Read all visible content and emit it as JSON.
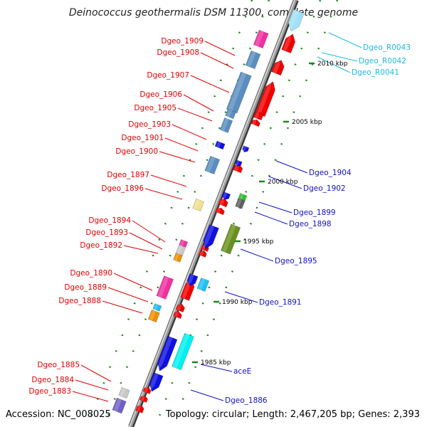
{
  "title": "Deinococcus geothermalis DSM 11300, complete genome",
  "footer": {
    "accession": "Accession: NC_008025",
    "topology": "Topology: circular; Length: 2,467,205 bp; Genes: 2,393"
  },
  "colors": {
    "forward_label": "#e00000",
    "reverse_label": "#1010c8",
    "rna_label": "#20b8e0",
    "green_tick": "#1a8a1a",
    "backbone": "#8c8c8c",
    "backbone_shadow": "#3a3a3a"
  },
  "scale_labels": [
    {
      "text": "2010 kbp"
    },
    {
      "text": "2005 kbp"
    },
    {
      "text": "2000 kbp"
    },
    {
      "text": "1995 kbp"
    },
    {
      "text": "1990 kbp"
    },
    {
      "text": "1985 kbp"
    }
  ],
  "forward_genes": [
    {
      "label": "Dgeo_1909"
    },
    {
      "label": "Dgeo_1908"
    },
    {
      "label": "Dgeo_1907"
    },
    {
      "label": "Dgeo_1906"
    },
    {
      "label": "Dgeo_1905"
    },
    {
      "label": "Dgeo_1903"
    },
    {
      "label": "Dgeo_1901"
    },
    {
      "label": "Dgeo_1900"
    },
    {
      "label": "Dgeo_1897"
    },
    {
      "label": "Dgeo_1896"
    },
    {
      "label": "Dgeo_1894"
    },
    {
      "label": "Dgeo_1893"
    },
    {
      "label": "Dgeo_1892"
    },
    {
      "label": "Dgeo_1890"
    },
    {
      "label": "Dgeo_1889"
    },
    {
      "label": "Dgeo_1888"
    },
    {
      "label": "Dgeo_1885"
    },
    {
      "label": "Dgeo_1884"
    },
    {
      "label": "Dgeo_1883"
    }
  ],
  "reverse_genes": [
    {
      "label": "Dgeo_1904"
    },
    {
      "label": "Dgeo_1902"
    },
    {
      "label": "Dgeo_1899"
    },
    {
      "label": "Dgeo_1898"
    },
    {
      "label": "Dgeo_1895"
    },
    {
      "label": "Dgeo_1891"
    },
    {
      "label": "aceE"
    },
    {
      "label": "Dgeo_1886"
    }
  ],
  "rna_genes": [
    {
      "label": "Dgeo_R0043"
    },
    {
      "label": "Dgeo_R0042"
    },
    {
      "label": "Dgeo_R0041"
    }
  ]
}
